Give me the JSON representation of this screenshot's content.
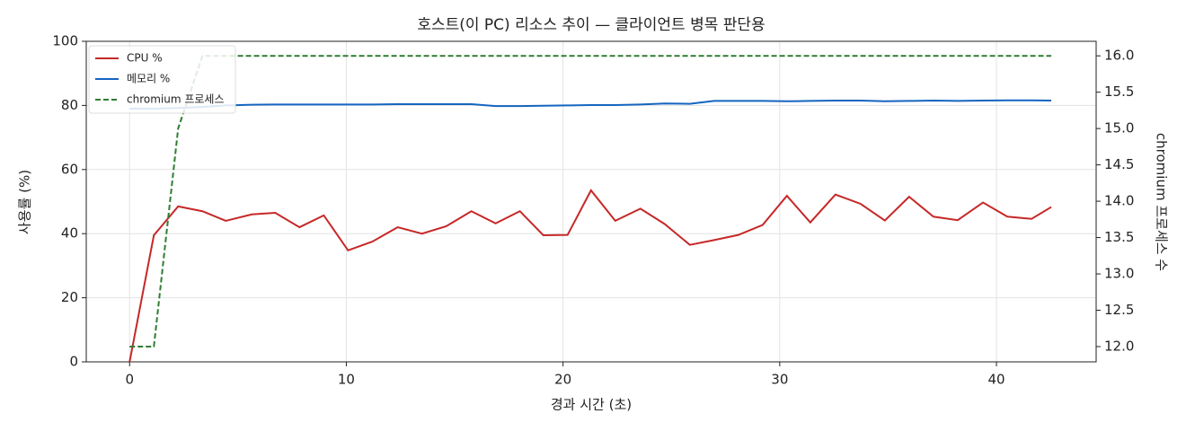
{
  "chart_data": {
    "type": "line",
    "title": "호스트(이 PC) 리소스 추이 — 클라이언트 병목 판단용",
    "x_label": "경과 시간 (초)",
    "y_label": "사용률 (%)",
    "y2_label": "chromium 프로세스 수",
    "x": [
      0,
      1.12,
      2.24,
      3.36,
      4.44,
      5.64,
      6.72,
      7.84,
      8.96,
      10.08,
      11.2,
      12.37,
      13.49,
      14.61,
      15.77,
      16.89,
      18.01,
      19.09,
      20.21,
      21.29,
      22.41,
      23.57,
      24.69,
      25.85,
      26.97,
      28.09,
      29.21,
      30.33,
      31.41,
      32.57,
      33.73,
      34.85,
      35.97,
      37.09,
      38.21,
      39.38,
      40.5,
      41.62,
      42.53
    ],
    "series": [
      {
        "name": "CPU %",
        "color": "#c62828",
        "dash": false,
        "values": [
          0,
          39.5,
          48.5,
          47,
          44,
          46,
          46.5,
          42,
          45.7,
          34.8,
          37.5,
          42,
          40,
          42.3,
          47,
          43.2,
          47,
          39.5,
          39.6,
          53.5,
          44,
          47.8,
          43,
          36.5,
          38,
          39.6,
          42.7,
          51.8,
          43.5,
          52.2,
          49.3,
          44.1,
          51.5,
          45.3,
          44.2,
          49.7,
          45.3,
          44.6,
          48.3
        ]
      },
      {
        "name": "메모리 %",
        "color": "#1565c0",
        "dash": false,
        "values": [
          79,
          79,
          79.2,
          79.5,
          80,
          80.2,
          80.3,
          80.3,
          80.3,
          80.3,
          80.3,
          80.4,
          80.4,
          80.4,
          80.4,
          79.8,
          79.8,
          79.9,
          80,
          80.1,
          80.1,
          80.3,
          80.6,
          80.5,
          81.4,
          81.4,
          81.4,
          81.3,
          81.4,
          81.5,
          81.5,
          81.3,
          81.4,
          81.5,
          81.4,
          81.5,
          81.6,
          81.6,
          81.5
        ]
      },
      {
        "name": "chromium 프로세스",
        "color": "#2e7d32",
        "dash": true,
        "axis": "y2",
        "values": [
          12,
          12,
          15,
          16,
          16,
          16,
          16,
          16,
          16,
          16,
          16,
          16,
          16,
          16,
          16,
          16,
          16,
          16,
          16,
          16,
          16,
          16,
          16,
          16,
          16,
          16,
          16,
          16,
          16,
          16,
          16,
          16,
          16,
          16,
          16,
          16,
          16,
          16,
          16
        ]
      }
    ],
    "xlim": [
      -2,
      44.6
    ],
    "xticks": [
      0,
      10,
      20,
      30,
      40
    ],
    "ylim": [
      0,
      100
    ],
    "yticks": [
      0,
      20,
      40,
      60,
      80,
      100
    ],
    "y2lim": [
      11.79,
      16.2
    ],
    "y2ticks": [
      {
        "value": 12,
        "label": "12.0"
      },
      12.5,
      {
        "value": 13,
        "label": "13.0"
      },
      13.5,
      {
        "value": 14,
        "label": "14.0"
      },
      14.5,
      {
        "value": 15,
        "label": "15.0"
      },
      15.5,
      {
        "value": 16,
        "label": "16.0"
      }
    ],
    "grid": true,
    "legend": "upper-left"
  }
}
